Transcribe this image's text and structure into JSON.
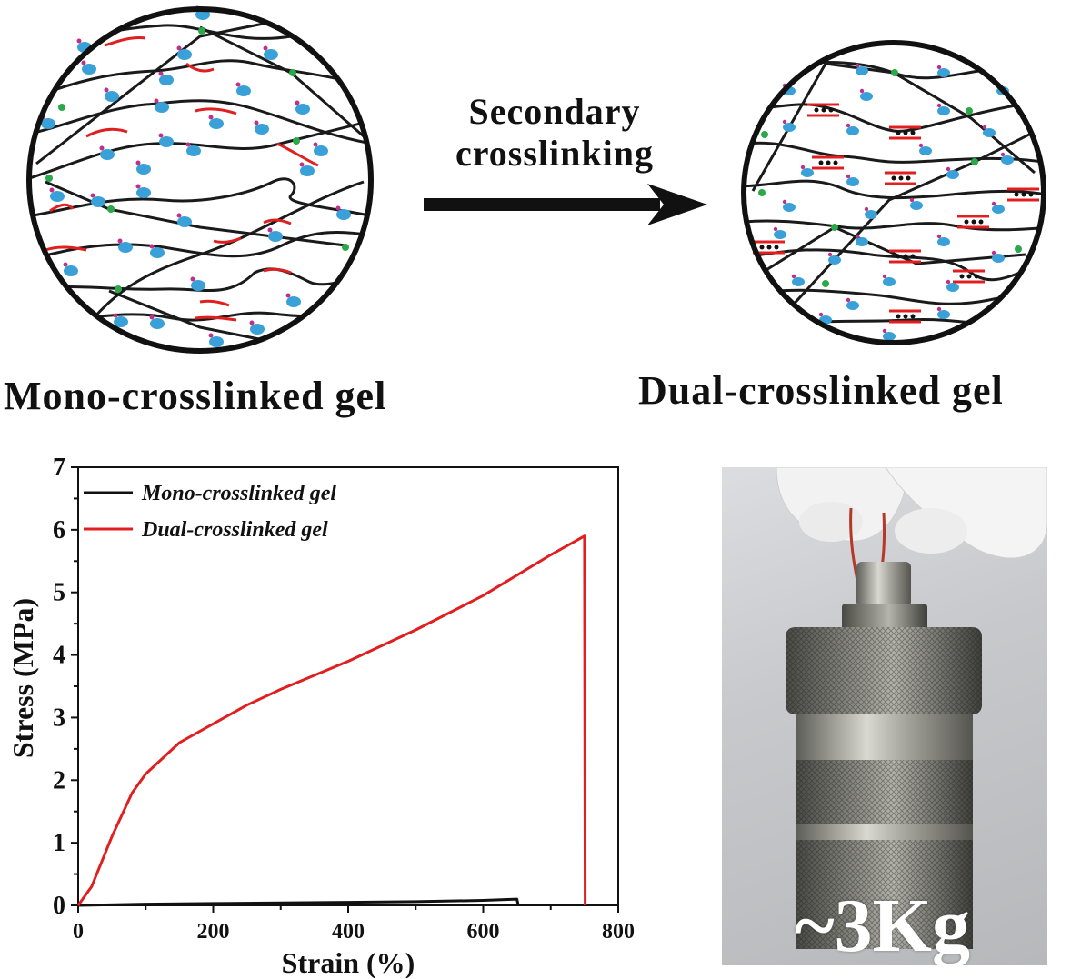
{
  "diagram": {
    "left_caption": "Mono-crosslinked gel",
    "right_caption": "Dual-crosslinked gel",
    "arrow_label_line1": "Secondary",
    "arrow_label_line2": "crosslinking"
  },
  "photo": {
    "weight_label": "~3Kg"
  },
  "colors": {
    "chain": "#1a1a1a",
    "secondary_crosslink": "#e02020",
    "crosslink_node": "#2aa84a",
    "molecule": "#3aa0d8",
    "molecule_tip": "#c0308a"
  },
  "chart_data": {
    "type": "line",
    "xlabel": "Strain (%)",
    "ylabel": "Stress (MPa)",
    "xlim": [
      0,
      800
    ],
    "ylim": [
      0,
      7
    ],
    "x_ticks": [
      "0",
      "200",
      "400",
      "600",
      "800"
    ],
    "y_ticks": [
      "0",
      "1",
      "2",
      "3",
      "4",
      "5",
      "6",
      "7"
    ],
    "legend_position": "top-left",
    "grid": false,
    "series": [
      {
        "name": "Mono-crosslinked gel",
        "color": "#111111",
        "x": [
          0,
          100,
          200,
          300,
          400,
          500,
          600,
          650,
          652
        ],
        "y": [
          0,
          0.02,
          0.03,
          0.04,
          0.05,
          0.06,
          0.08,
          0.1,
          0
        ]
      },
      {
        "name": "Dual-crosslinked gel",
        "color": "#e02020",
        "x": [
          0,
          20,
          50,
          80,
          100,
          150,
          200,
          250,
          300,
          400,
          500,
          600,
          700,
          750,
          751
        ],
        "y": [
          0,
          0.3,
          1.1,
          1.8,
          2.1,
          2.6,
          2.9,
          3.2,
          3.45,
          3.9,
          4.4,
          4.95,
          5.6,
          5.9,
          0
        ]
      }
    ]
  }
}
